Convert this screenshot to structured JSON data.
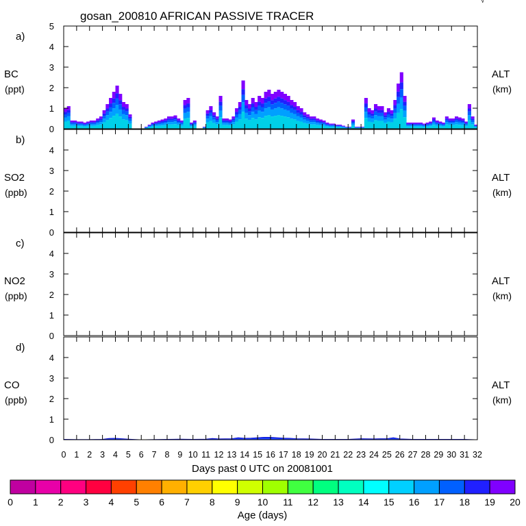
{
  "title": "gosan_200810 AFRICAN PASSIVE TRACER",
  "corner_mark": "√",
  "panels": [
    {
      "letter": "a)",
      "species": "BC",
      "unit": "(ppt)",
      "right_label": "ALT",
      "right_unit": "(km)"
    },
    {
      "letter": "b)",
      "species": "SO2",
      "unit": "(ppb)",
      "right_label": "ALT",
      "right_unit": "(km)"
    },
    {
      "letter": "c)",
      "species": "NO2",
      "unit": "(ppb)",
      "right_label": "ALT",
      "right_unit": "(km)"
    },
    {
      "letter": "d)",
      "species": "CO",
      "unit": "(ppb)",
      "right_label": "ALT",
      "right_unit": "(km)"
    }
  ],
  "colorbar": {
    "label": "Age (days)",
    "ticks": [
      "0",
      "1",
      "2",
      "3",
      "4",
      "5",
      "6",
      "7",
      "8",
      "9",
      "10",
      "11",
      "12",
      "13",
      "14",
      "15",
      "16",
      "17",
      "18",
      "19",
      "20"
    ],
    "colors": [
      "#800080",
      "#c000a0",
      "#e800a8",
      "#ff0080",
      "#ff0040",
      "#ff4000",
      "#ff8000",
      "#ffb000",
      "#ffd000",
      "#ffff00",
      "#d0ff00",
      "#a0ff00",
      "#40ff40",
      "#00ff80",
      "#00ffc0",
      "#00ffff",
      "#00d0ff",
      "#00a0ff",
      "#0060ff",
      "#2020ff",
      "#8000ff"
    ]
  },
  "chart_data": [
    {
      "type": "area",
      "panel": "a",
      "xlabel": "Days past 0 UTC on 20081001",
      "ylabel": "BC (ppt)",
      "xlim": [
        0,
        32
      ],
      "ylim": [
        0,
        5
      ],
      "xticks": [
        "0",
        "1",
        "2",
        "3",
        "4",
        "5",
        "6",
        "7",
        "8",
        "9",
        "10",
        "11",
        "12",
        "13",
        "14",
        "15",
        "16",
        "17",
        "18",
        "19",
        "20",
        "21",
        "22",
        "23",
        "24",
        "25",
        "26",
        "27",
        "28",
        "29",
        "30",
        "31",
        "32"
      ],
      "yticks": [
        "0",
        "1",
        "2",
        "3",
        "4",
        "5"
      ],
      "x": [
        0,
        0.25,
        0.5,
        0.75,
        1,
        1.25,
        1.5,
        1.75,
        2,
        2.25,
        2.5,
        2.75,
        3,
        3.25,
        3.5,
        3.75,
        4,
        4.25,
        4.5,
        4.75,
        5,
        5.25,
        5.5,
        5.75,
        6,
        6.25,
        6.5,
        6.75,
        7,
        7.25,
        7.5,
        7.75,
        8,
        8.25,
        8.5,
        8.75,
        9,
        9.25,
        9.5,
        9.75,
        10,
        10.25,
        10.5,
        10.75,
        11,
        11.25,
        11.5,
        11.75,
        12,
        12.25,
        12.5,
        12.75,
        13,
        13.25,
        13.5,
        13.75,
        14,
        14.25,
        14.5,
        14.75,
        15,
        15.25,
        15.5,
        15.75,
        16,
        16.25,
        16.5,
        16.75,
        17,
        17.25,
        17.5,
        17.75,
        18,
        18.25,
        18.5,
        18.75,
        19,
        19.25,
        19.5,
        19.75,
        20,
        20.25,
        20.5,
        20.75,
        21,
        21.25,
        21.5,
        21.75,
        22,
        22.25,
        22.5,
        22.75,
        23,
        23.25,
        23.5,
        23.75,
        24,
        24.25,
        24.5,
        24.75,
        25,
        25.25,
        25.5,
        25.75,
        26,
        26.25,
        26.5,
        26.75,
        27,
        27.25,
        27.5,
        27.75,
        28,
        28.25,
        28.5,
        28.75,
        29,
        29.25,
        29.5,
        29.75,
        30,
        30.25,
        30.5,
        30.75,
        31,
        31.25,
        31.5,
        31.75
      ],
      "values": [
        1.0,
        1.1,
        0.4,
        0.4,
        0.35,
        0.35,
        0.3,
        0.35,
        0.4,
        0.4,
        0.5,
        0.6,
        0.9,
        1.2,
        1.5,
        1.8,
        2.1,
        1.7,
        1.3,
        1.2,
        0.7,
        0,
        0,
        0,
        0,
        0.1,
        0.2,
        0.3,
        0.35,
        0.4,
        0.45,
        0.5,
        0.6,
        0.6,
        0.65,
        0.5,
        0.4,
        1.4,
        1.5,
        0.3,
        0.4,
        0,
        0,
        0.1,
        0.9,
        1.1,
        0.8,
        0.6,
        1.6,
        0.5,
        0.5,
        0.45,
        0.6,
        1.0,
        1.3,
        2.35,
        1.4,
        1.2,
        1.5,
        1.3,
        1.6,
        1.5,
        1.8,
        1.9,
        1.7,
        1.8,
        1.9,
        1.8,
        1.7,
        1.6,
        1.4,
        1.3,
        1.1,
        1.0,
        0.8,
        0.7,
        0.6,
        0.6,
        0.5,
        0.45,
        0.4,
        0.3,
        0.25,
        0.25,
        0.2,
        0.2,
        0.15,
        0.1,
        0.1,
        0.45,
        0.1,
        0.1,
        0.1,
        1.5,
        1.0,
        0.9,
        1.2,
        1.1,
        1.1,
        0.8,
        1.0,
        0.9,
        1.4,
        2.2,
        2.75,
        1.6,
        0.3,
        0.3,
        0.3,
        0.3,
        0.3,
        0.25,
        0.3,
        0.35,
        0.55,
        0.4,
        0.35,
        0.3,
        0.6,
        0.5,
        0.5,
        0.6,
        0.55,
        0.5,
        0.35,
        1.2,
        0.6,
        0.2
      ]
    },
    {
      "type": "area",
      "panel": "b",
      "xlim": [
        0,
        32
      ],
      "ylim": [
        0,
        5
      ],
      "yticks": [
        "0",
        "1",
        "2",
        "3",
        "4"
      ],
      "values": []
    },
    {
      "type": "area",
      "panel": "c",
      "xlim": [
        0,
        32
      ],
      "ylim": [
        0,
        5
      ],
      "yticks": [
        "0",
        "1",
        "2",
        "3",
        "4"
      ],
      "values": []
    },
    {
      "type": "area",
      "panel": "d",
      "xlim": [
        0,
        32
      ],
      "ylim": [
        0,
        5
      ],
      "yticks": [
        "0",
        "1",
        "2",
        "3",
        "4"
      ],
      "x": [
        0,
        1,
        2,
        3,
        3.5,
        4,
        4.5,
        5,
        6,
        7,
        8,
        9,
        10,
        11,
        11.5,
        12,
        13,
        13.5,
        14,
        14.5,
        15,
        15.5,
        16,
        16.5,
        17,
        17.5,
        18,
        19,
        20,
        21,
        22,
        23,
        24,
        24.5,
        25,
        25.5,
        26,
        27,
        28,
        29,
        30,
        31,
        32
      ],
      "values": [
        0.02,
        0.01,
        0.01,
        0.02,
        0.06,
        0.07,
        0.05,
        0.03,
        0.0,
        0.01,
        0.02,
        0.03,
        0.02,
        0.03,
        0.06,
        0.04,
        0.05,
        0.1,
        0.07,
        0.08,
        0.1,
        0.12,
        0.12,
        0.1,
        0.08,
        0.07,
        0.05,
        0.04,
        0.02,
        0.02,
        0.02,
        0.05,
        0.04,
        0.05,
        0.05,
        0.1,
        0.04,
        0.02,
        0.02,
        0.02,
        0.02,
        0.02,
        0.0
      ]
    }
  ]
}
